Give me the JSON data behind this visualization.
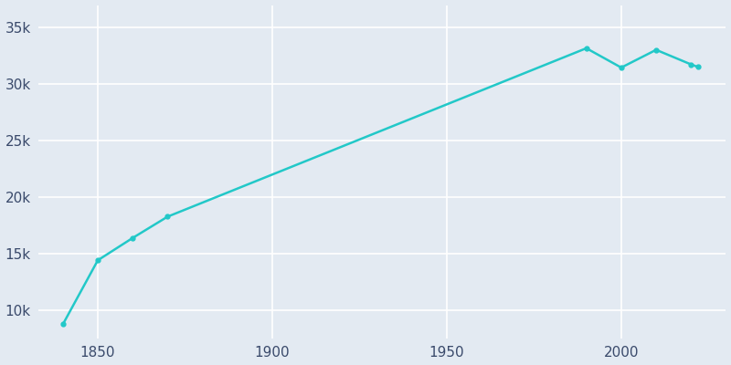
{
  "years": [
    1840,
    1850,
    1860,
    1870,
    1990,
    2000,
    2010,
    2020,
    2022
  ],
  "population": [
    8776,
    14432,
    16407,
    18289,
    33181,
    31473,
    33039,
    31753,
    31522
  ],
  "line_color": "#22C8C8",
  "marker_color": "#22C8C8",
  "bg_color": "#E3EAF2",
  "grid_color": "#FFFFFF",
  "text_color": "#3a4a6b",
  "xlim": [
    1833,
    2030
  ],
  "ylim": [
    7500,
    37000
  ],
  "yticks": [
    10000,
    15000,
    20000,
    25000,
    30000,
    35000
  ],
  "ytick_labels": [
    "10k",
    "15k",
    "20k",
    "25k",
    "30k",
    "35k"
  ],
  "xticks": [
    1850,
    1900,
    1950,
    2000
  ],
  "xtick_labels": [
    "1850",
    "1900",
    "1950",
    "2000"
  ]
}
